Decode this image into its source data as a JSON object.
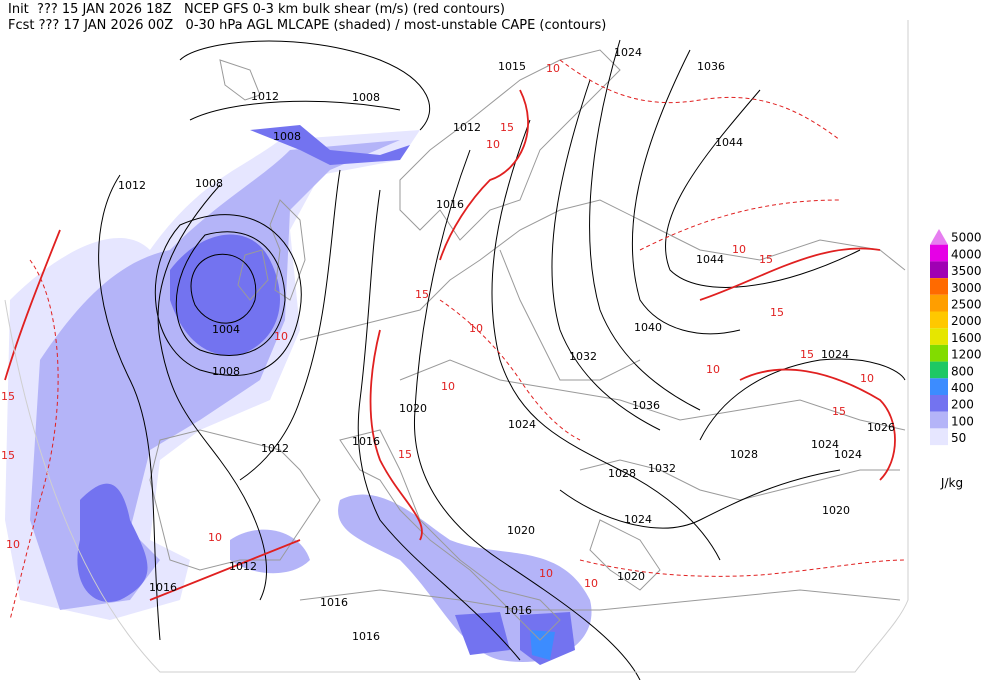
{
  "header": {
    "line1": "Init  ??? 15 JAN 2026 18Z   NCEP GFS 0-3 km bulk shear (m/s) (red contours)",
    "line2": "Fcst ??? 17 JAN 2026 00Z   0-30 hPa AGL MLCAPE (shaded) / most-unstable CAPE (contours)"
  },
  "colorbar": {
    "labels": [
      "5000",
      "4000",
      "3500",
      "3000",
      "2500",
      "2000",
      "1600",
      "1200",
      "800",
      "400",
      "200",
      "100",
      "50"
    ],
    "colors": [
      "#e67ef0",
      "#e600e6",
      "#a000b4",
      "#ff6a00",
      "#ff9e00",
      "#ffc800",
      "#e6e600",
      "#82dc00",
      "#1ec864",
      "#3c8cff",
      "#7373f0",
      "#b4b4f8",
      "#e6e6ff"
    ],
    "unit": "J/kg"
  },
  "isobar_labels": [
    "1012",
    "1008",
    "1012",
    "1015",
    "1024",
    "1036",
    "1044",
    "1008",
    "1012",
    "1008",
    "1016",
    "1044",
    "1004",
    "1040",
    "1008",
    "1032",
    "1024",
    "1036",
    "1020",
    "1024",
    "1026",
    "1016",
    "1012",
    "1024",
    "1028",
    "1024",
    "1032",
    "1028",
    "1020",
    "1024",
    "1020",
    "1012",
    "1020",
    "1016",
    "1016",
    "1016",
    "1016"
  ],
  "shear_labels": [
    "15",
    "15",
    "15",
    "15",
    "15",
    "15",
    "15",
    "15",
    "15",
    "10",
    "10",
    "10",
    "10",
    "10",
    "10",
    "10",
    "10",
    "10",
    "10",
    "10",
    "10"
  ]
}
